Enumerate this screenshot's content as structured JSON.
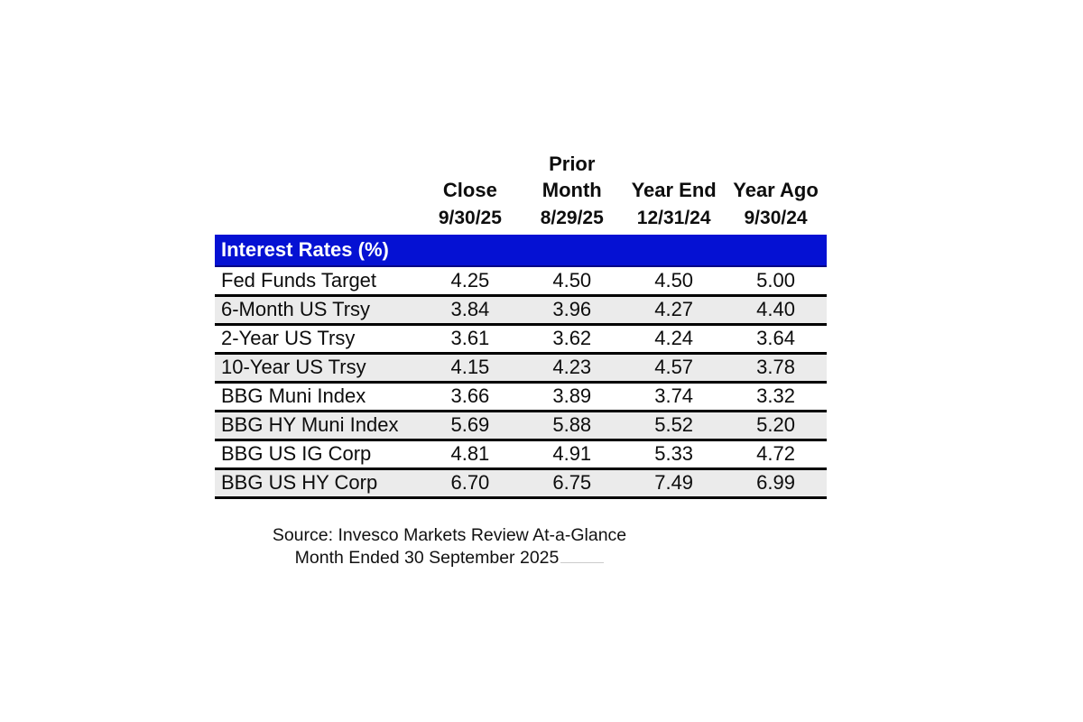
{
  "colors": {
    "section_bg": "#0511d3",
    "row_alt_bg": "#ebebeb",
    "section_text": "#ffffff",
    "text": "#0d0d0d"
  },
  "table": {
    "section_title": "Interest Rates (%)",
    "columns": [
      {
        "label_top": "",
        "label": "Close",
        "date": "9/30/25"
      },
      {
        "label_top": "Prior",
        "label": "Month",
        "date": "8/29/25"
      },
      {
        "label_top": "",
        "label": "Year End",
        "date": "12/31/24"
      },
      {
        "label_top": "",
        "label": "Year Ago",
        "date": "9/30/24"
      }
    ],
    "rows": [
      {
        "label": "Fed Funds Target",
        "values": [
          "4.25",
          "4.50",
          "4.50",
          "5.00"
        ]
      },
      {
        "label": "6-Month US Trsy",
        "values": [
          "3.84",
          "3.96",
          "4.27",
          "4.40"
        ]
      },
      {
        "label": "2-Year US Trsy",
        "values": [
          "3.61",
          "3.62",
          "4.24",
          "3.64"
        ]
      },
      {
        "label": "10-Year US Trsy",
        "values": [
          "4.15",
          "4.23",
          "4.57",
          "3.78"
        ]
      },
      {
        "label": "BBG Muni Index",
        "values": [
          "3.66",
          "3.89",
          "3.74",
          "3.32"
        ]
      },
      {
        "label": "BBG HY Muni Index",
        "values": [
          "5.69",
          "5.88",
          "5.52",
          "5.20"
        ]
      },
      {
        "label": "BBG US IG Corp",
        "values": [
          "4.81",
          "4.91",
          "5.33",
          "4.72"
        ]
      },
      {
        "label": "BBG US HY Corp",
        "values": [
          "6.70",
          "6.75",
          "7.49",
          "6.99"
        ]
      }
    ]
  },
  "footer": {
    "source_line": "Source: Invesco Markets Review At-a-Glance",
    "period_line": "Month Ended 30 September 2025"
  },
  "chart_data": {
    "type": "table",
    "title": "Interest Rates (%)",
    "columns": [
      "",
      "Close 9/30/25",
      "Prior Month 8/29/25",
      "Year End 12/31/24",
      "Year Ago 9/30/24"
    ],
    "rows": [
      [
        "Fed Funds Target",
        4.25,
        4.5,
        4.5,
        5.0
      ],
      [
        "6-Month US Trsy",
        3.84,
        3.96,
        4.27,
        4.4
      ],
      [
        "2-Year US Trsy",
        3.61,
        3.62,
        4.24,
        3.64
      ],
      [
        "10-Year US Trsy",
        4.15,
        4.23,
        4.57,
        3.78
      ],
      [
        "BBG Muni Index",
        3.66,
        3.89,
        3.74,
        3.32
      ],
      [
        "BBG HY Muni Index",
        5.69,
        5.88,
        5.52,
        5.2
      ],
      [
        "BBG US IG Corp",
        4.81,
        4.91,
        5.33,
        4.72
      ],
      [
        "BBG US HY Corp",
        6.7,
        6.75,
        7.49,
        6.99
      ]
    ]
  }
}
